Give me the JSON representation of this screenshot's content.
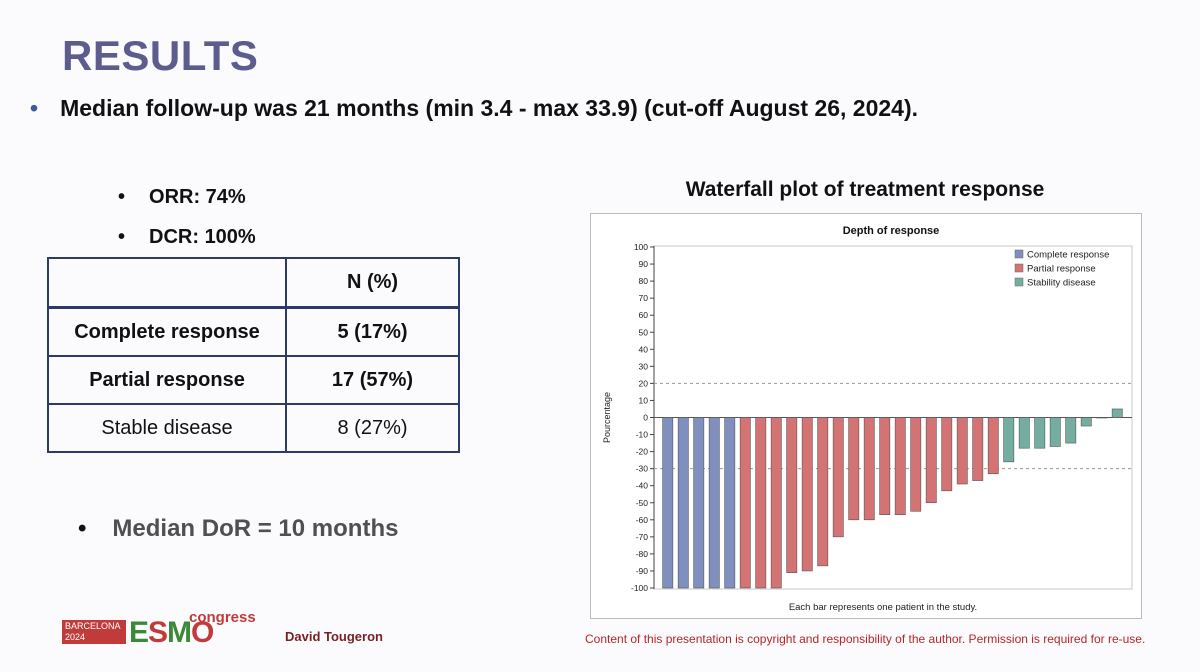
{
  "slide": {
    "title": "RESULTS",
    "bullet_main": "Median follow-up was 21 months (min 3.4 - max 33.9) (cut-off August 26, 2024).",
    "bullet_glyph": "•",
    "kpi": [
      "ORR: 74%",
      "DCR: 100%"
    ],
    "dor": "Median DoR = 10 months",
    "author": "David Tougeron",
    "copyright": "Content of this presentation is copyright and responsibility of the author. Permission is required for re-use.",
    "logo": {
      "city": "BARCELONA",
      "year": "2024",
      "letters": [
        "E",
        "S",
        "M",
        "O"
      ],
      "congress": "congress"
    }
  },
  "table": {
    "header": [
      "",
      "N (%)"
    ],
    "rows": [
      {
        "label": "Complete response",
        "value": "5 (17%)"
      },
      {
        "label": "Partial response",
        "value": "17 (57%)"
      },
      {
        "label": "Stable disease",
        "value": "8 (27%)"
      }
    ]
  },
  "chart_data": {
    "type": "bar",
    "title": "Waterfall plot of treatment response",
    "subtitle": "Depth of response",
    "ylabel": "Pourcentage",
    "xlabel": "Each bar represents one patient in the study.",
    "ylim": [
      -100,
      100
    ],
    "yticks": [
      100,
      90,
      80,
      70,
      60,
      50,
      40,
      30,
      20,
      10,
      0,
      -10,
      -20,
      -30,
      -40,
      -50,
      -60,
      -70,
      -80,
      -90,
      -100
    ],
    "reference_lines": [
      20,
      -30
    ],
    "legend_position": "top-right",
    "grid": false,
    "series": [
      {
        "name": "Complete response",
        "color": "#7f8fbe",
        "values": [
          -100,
          -100,
          -100,
          -100,
          -100
        ]
      },
      {
        "name": "Partial response",
        "color": "#d47373",
        "values": [
          -100,
          -100,
          -100,
          -91,
          -90,
          -87,
          -70,
          -60,
          -60,
          -57,
          -57,
          -55,
          -50,
          -43,
          -39,
          -37,
          -33
        ]
      },
      {
        "name": "Stability disease",
        "color": "#73aea0",
        "values": [
          -26,
          -18,
          -18,
          -17,
          -15,
          -5,
          0,
          5
        ]
      }
    ]
  }
}
